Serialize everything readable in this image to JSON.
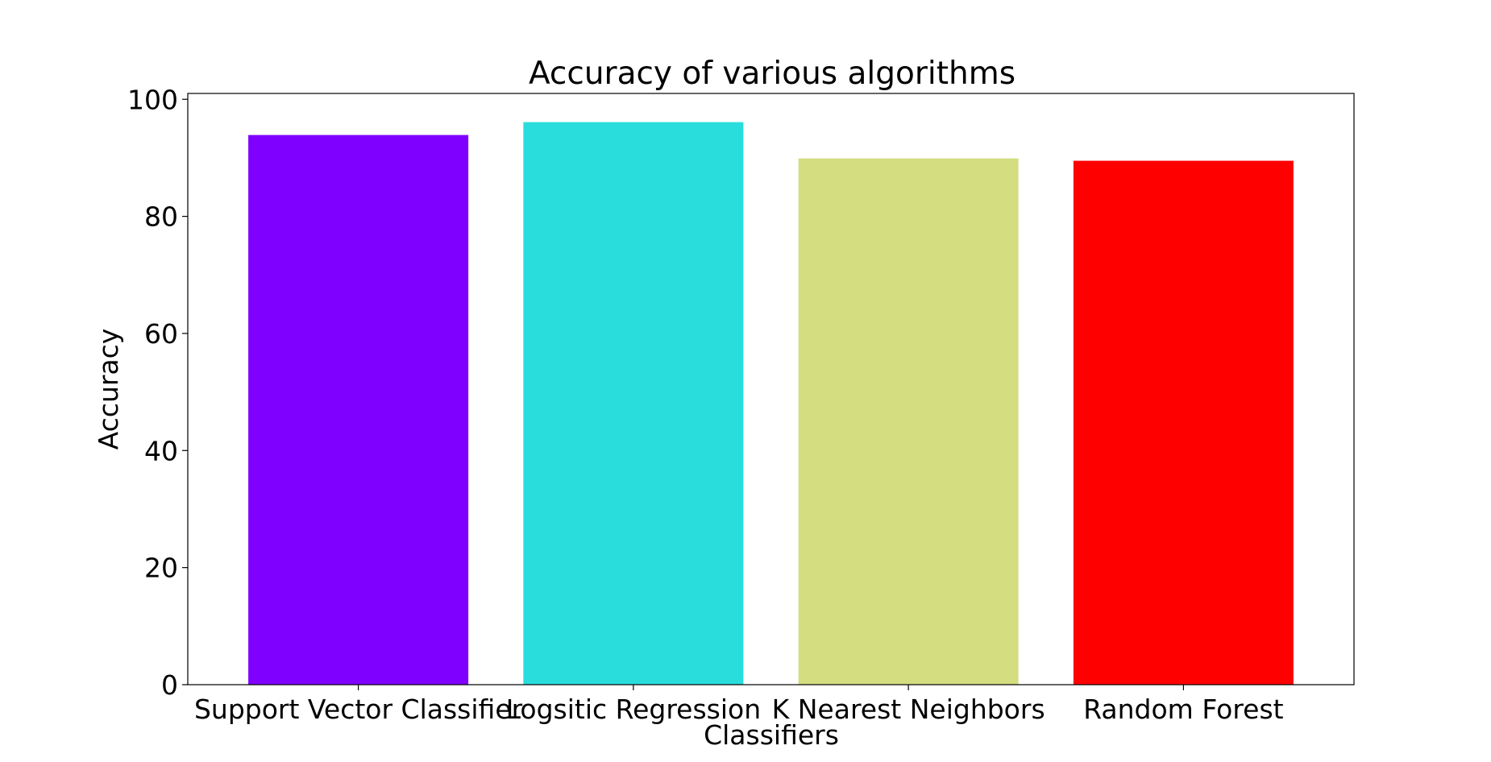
{
  "chart_data": {
    "type": "bar",
    "title": "Accuracy of various algorithms",
    "xlabel": "Classifiers",
    "ylabel": "Accuracy",
    "categories": [
      "Support Vector Classifier",
      "Logsitic Regression",
      "K Nearest Neighbors",
      "Random Forest"
    ],
    "values": [
      93.9,
      96.1,
      89.9,
      89.5
    ],
    "colors": [
      "#8000ff",
      "#2adddd",
      "#d4dd80",
      "#ff0000"
    ],
    "ylim": [
      0,
      101
    ],
    "yticks": [
      0,
      20,
      40,
      60,
      80,
      100
    ],
    "grid": false,
    "legend": "none"
  }
}
